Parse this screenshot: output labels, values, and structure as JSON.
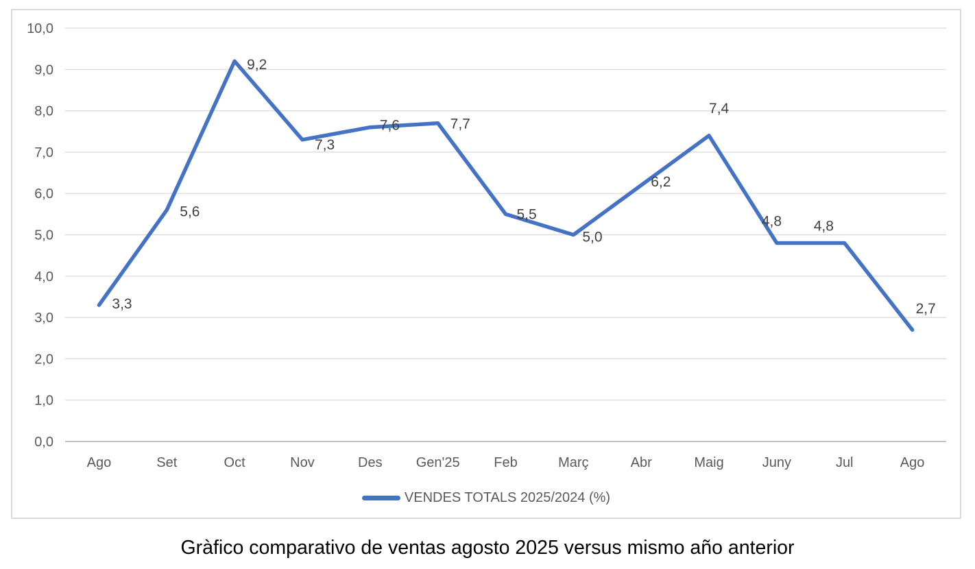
{
  "caption": "Gràfico comparativo de ventas agosto 2025 versus mismo año anterior",
  "chart_data": {
    "type": "line",
    "title": "",
    "xlabel": "",
    "ylabel": "",
    "categories": [
      "Ago",
      "Set",
      "Oct",
      "Nov",
      "Des",
      "Gen'25",
      "Feb",
      "Març",
      "Abr",
      "Maig",
      "Juny",
      "Jul",
      "Ago"
    ],
    "series": [
      {
        "name": "VENDES TOTALS 2025/2024 (%)",
        "values": [
          3.3,
          5.6,
          9.2,
          7.3,
          7.6,
          7.7,
          5.5,
          5.0,
          6.2,
          7.4,
          4.8,
          4.8,
          2.7
        ]
      }
    ],
    "data_labels": [
      "3,3",
      "5,6",
      "9,2",
      "7,3",
      "7,6",
      "7,7",
      "5,5",
      "5,0",
      "6,2",
      "7,4",
      "4,8",
      "4,8",
      "2,7"
    ],
    "y_ticks": [
      "10,0",
      "9,0",
      "8,0",
      "7,0",
      "6,0",
      "5,0",
      "4,0",
      "3,0",
      "2,0",
      "1,0",
      "0,0"
    ],
    "ylim": [
      0,
      10
    ],
    "grid": true,
    "legend": "VENDES TOTALS 2025/2024 (%)",
    "legend_position": "bottom",
    "line_color": "#4472C4",
    "gridline_color": "#D9D9D9",
    "axis_line_color": "#ADADAD",
    "axis_text_color": "#595959",
    "label_text_color": "#404040"
  }
}
